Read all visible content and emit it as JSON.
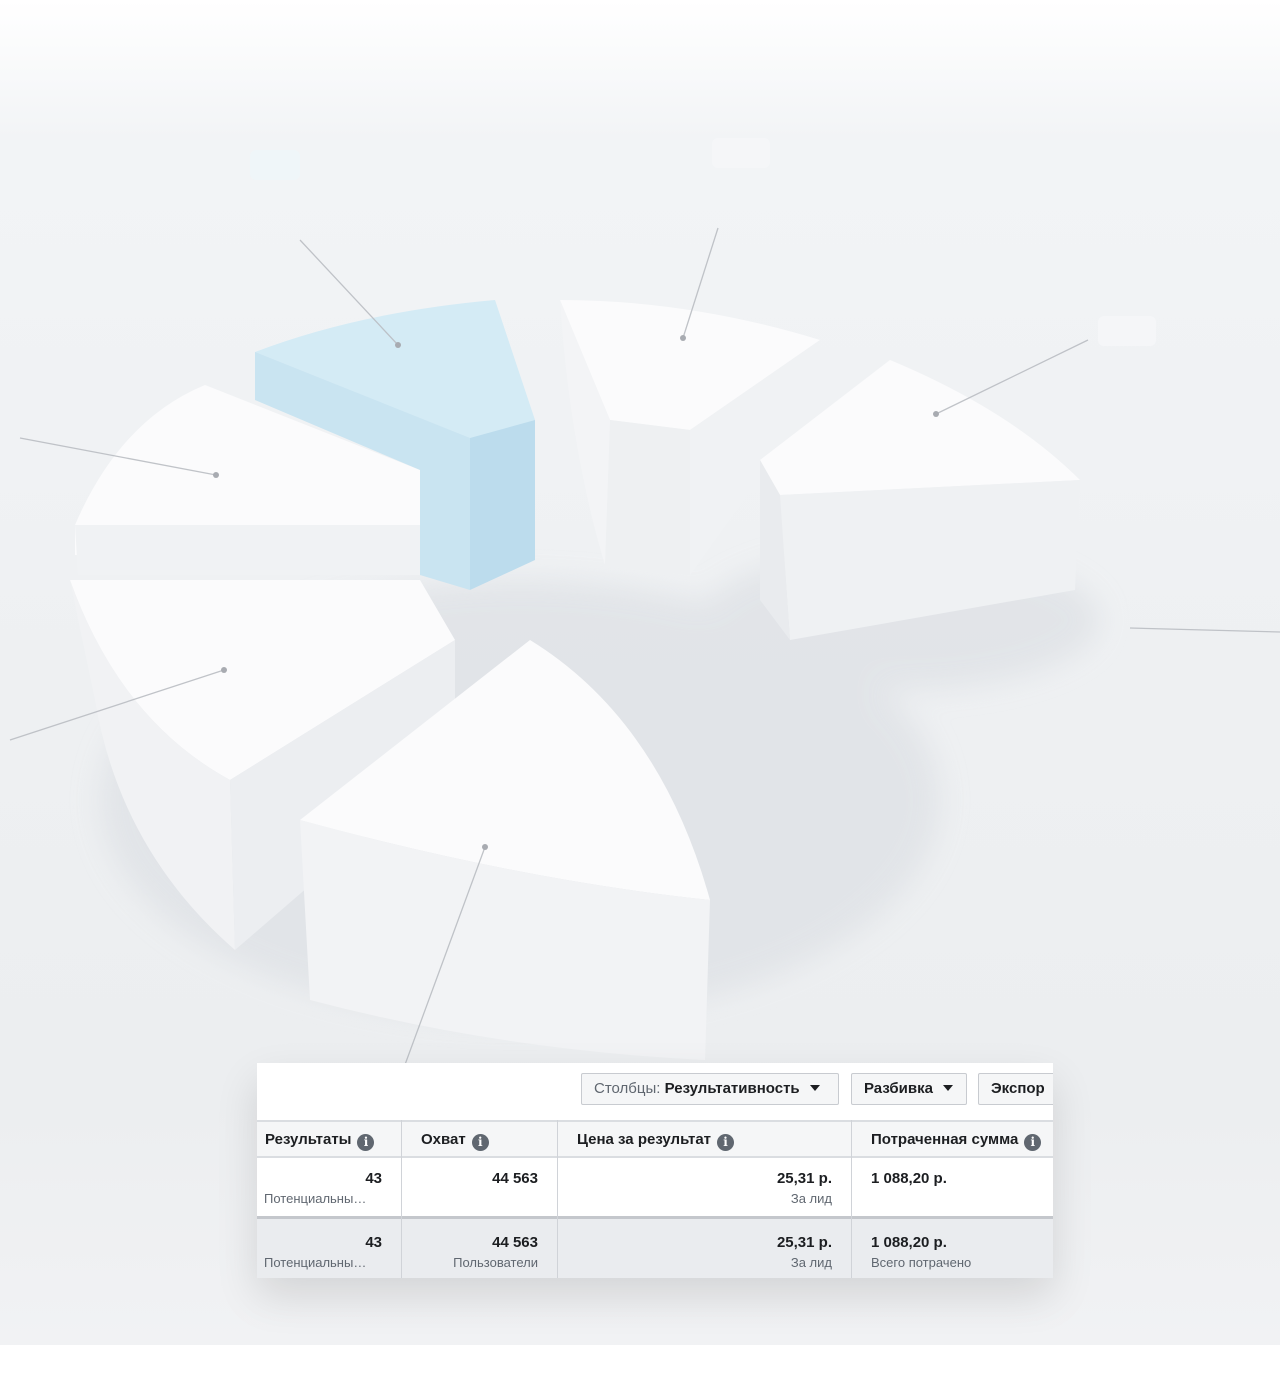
{
  "toolbar": {
    "columns_prefix": "Столбцы:",
    "columns_value": "Результативность",
    "breakdown_label": "Разбивка",
    "export_label": "Экспор",
    "caret_icon": "caret-down-icon"
  },
  "table": {
    "headers": [
      "Результаты",
      "Охват",
      "Цена за результат",
      "Потраченная сумма"
    ],
    "rows": [
      {
        "results": "43",
        "results_sub": "Потенциальны…",
        "reach": "44 563",
        "reach_sub": "",
        "cost": "25,31 р.",
        "cost_sub": "За лид",
        "spent": "1 088,20 р.",
        "spent_sub": ""
      }
    ],
    "summary": {
      "results": "43",
      "results_sub": "Потенциальны…",
      "reach": "44 563",
      "reach_sub": "Пользователи",
      "cost": "25,31 р.",
      "cost_sub": "За лид",
      "spent": "1 088,20 р.",
      "spent_sub": "Всего потрачено"
    }
  },
  "colors": {
    "accent_slice": "#cde8f4",
    "header_bg": "#f5f6f7",
    "summary_bg": "#eaecef",
    "text": "#1c1e21",
    "muted": "#606770"
  }
}
